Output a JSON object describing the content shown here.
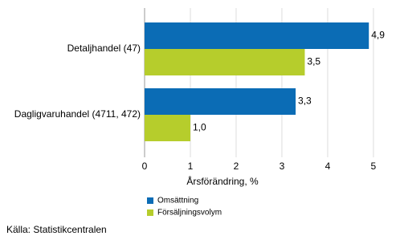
{
  "chart_data": {
    "type": "hbar",
    "categories": [
      "Detaljhandel (47)",
      "Dagligvaruhandel (4711, 472)"
    ],
    "series": [
      {
        "name": "Omsättning",
        "color": "#0b6cb5",
        "values": [
          4.9,
          3.3
        ],
        "value_labels": [
          "4,9",
          "3,3"
        ]
      },
      {
        "name": "Försäljningsvolym",
        "color": "#b6cd2c",
        "values": [
          3.5,
          1.0
        ],
        "value_labels": [
          "3,5",
          "1,0"
        ]
      }
    ],
    "xlim": [
      0,
      5.3
    ],
    "xticks": [
      0,
      1,
      2,
      3,
      4,
      5
    ],
    "grid": true,
    "xlabel": "Årsförändring, %",
    "source": "Källa: Statistikcentralen"
  }
}
